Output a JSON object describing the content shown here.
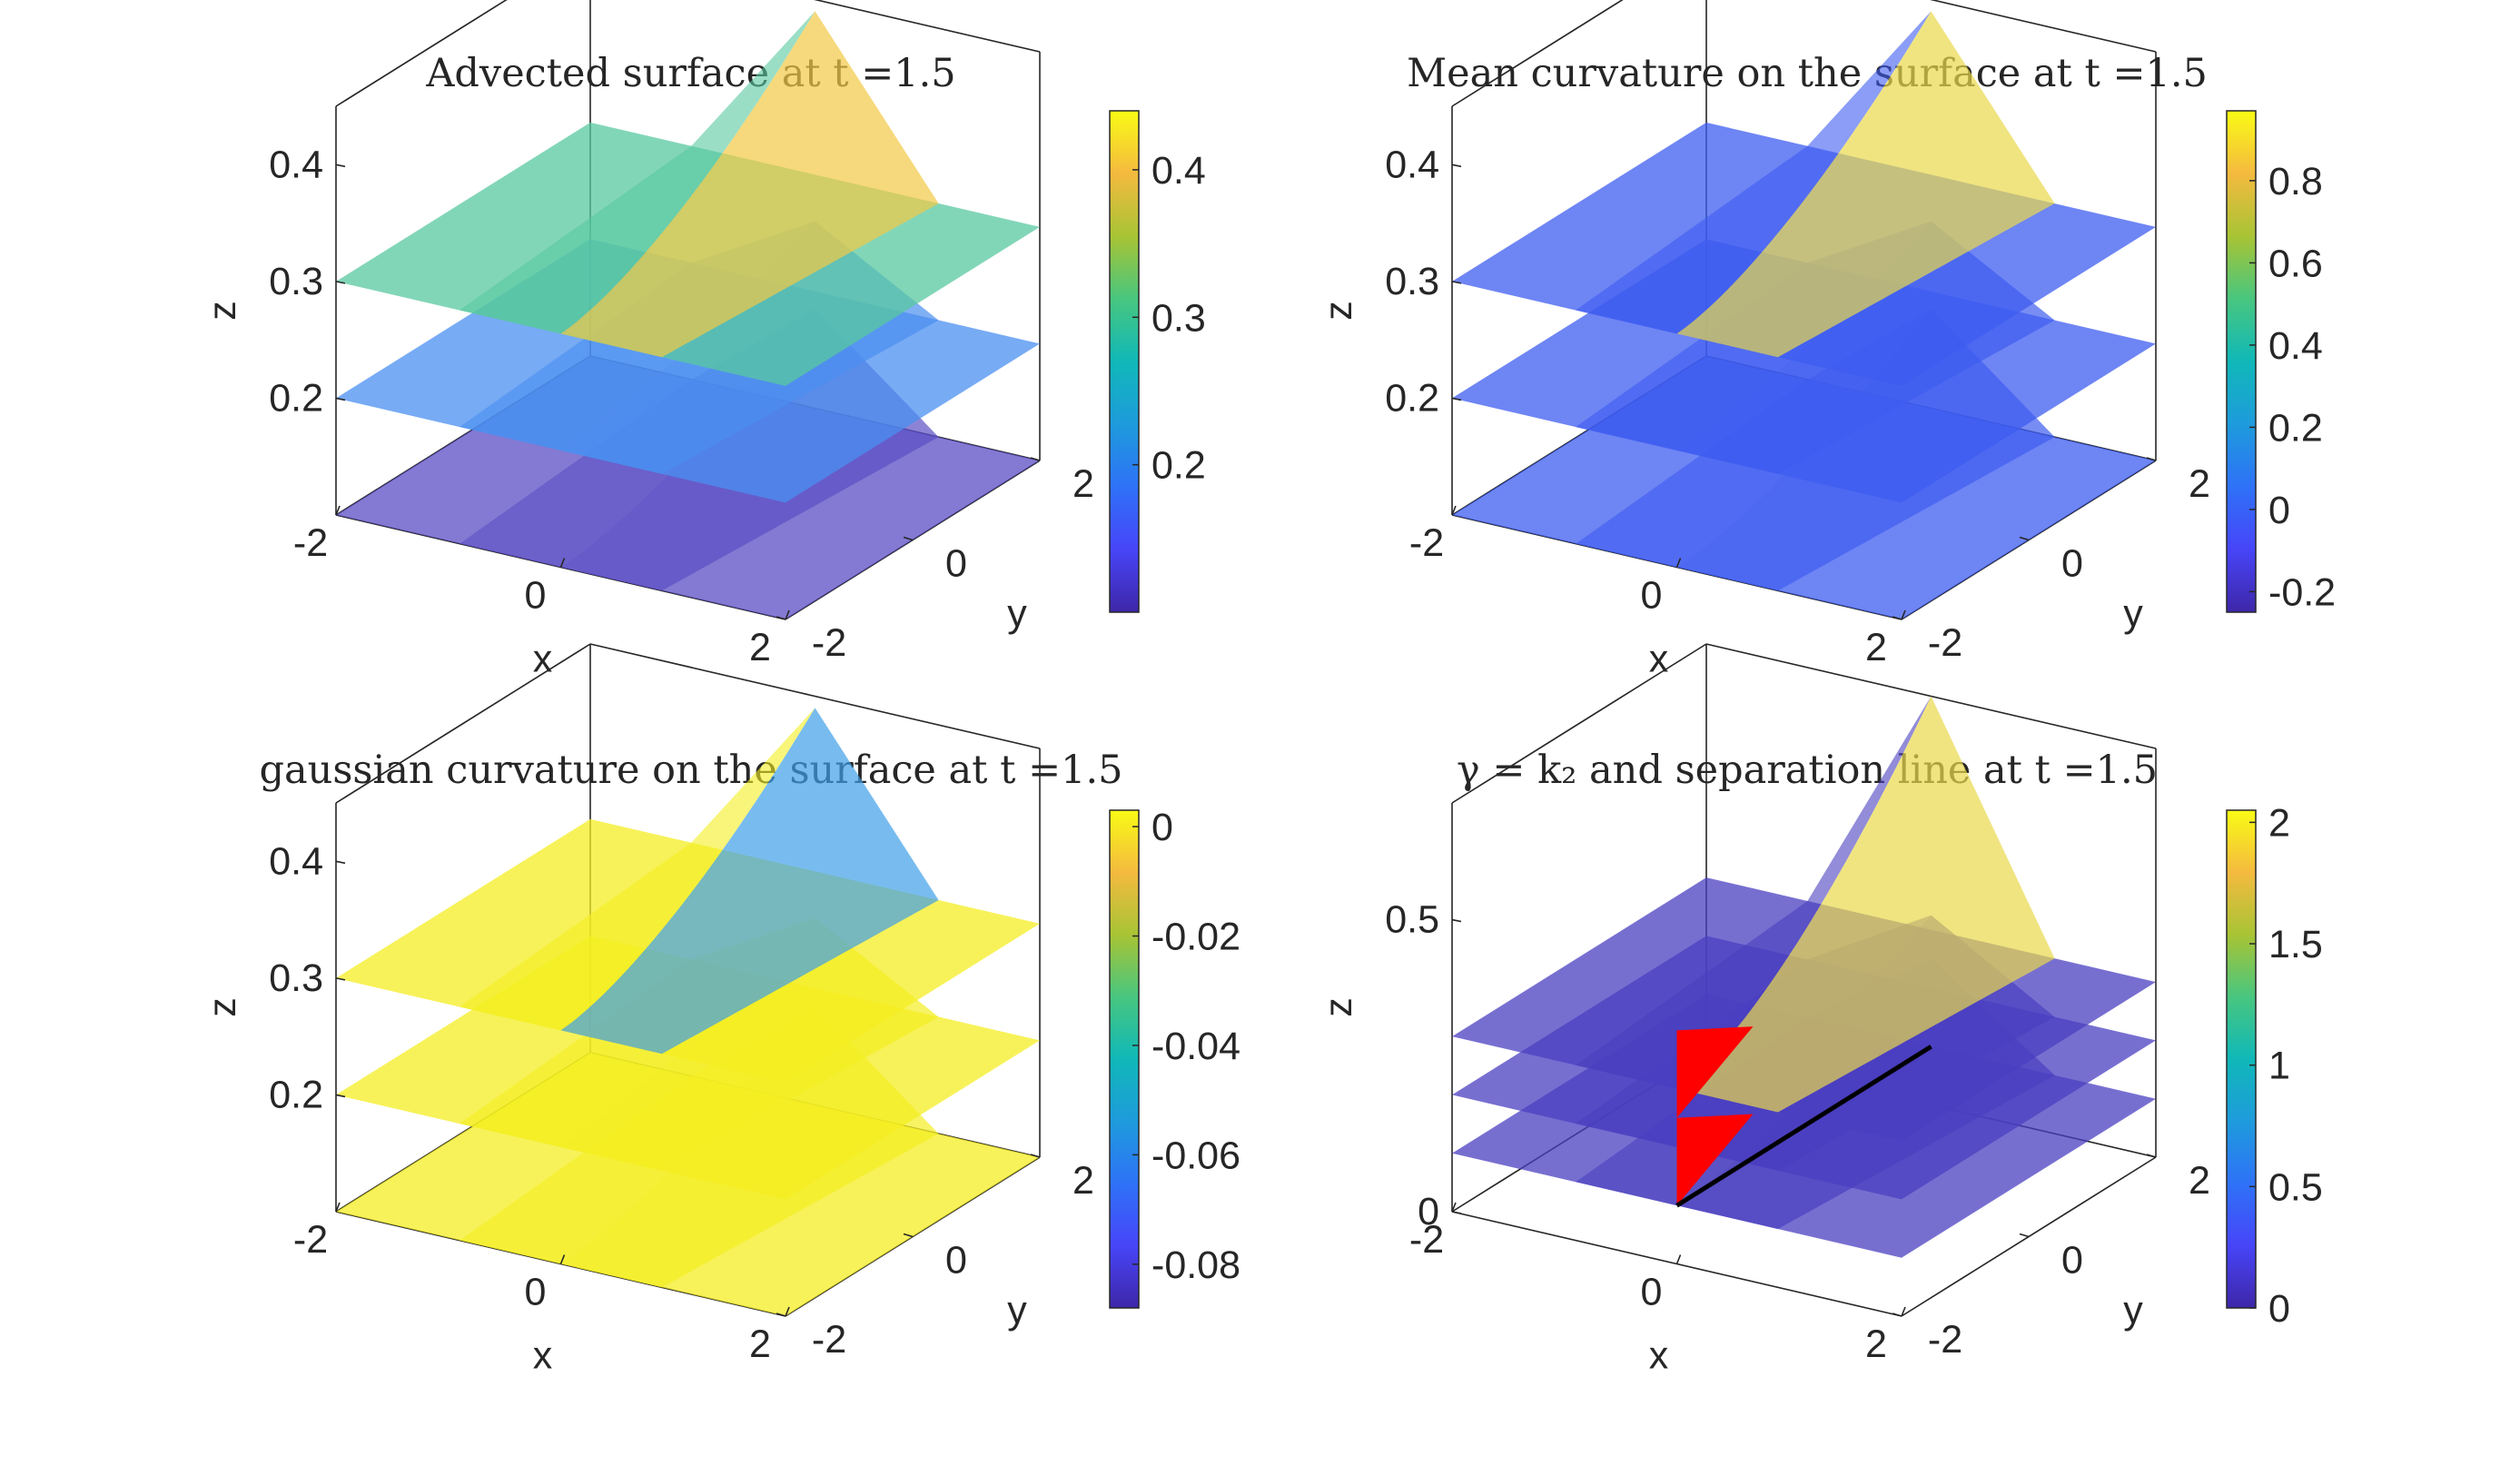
{
  "figure": {
    "layout": "2x2 subplots"
  },
  "chart_data": [
    {
      "type": "surface",
      "title": "Advected surface at t =1.5",
      "xlabel": "x",
      "ylabel": "y",
      "zlabel": "z",
      "xticks": [
        "-2",
        "0",
        "2"
      ],
      "yticks": [
        "-2",
        "0",
        "2"
      ],
      "zticks": [
        "0.2",
        "0.3",
        "0.4"
      ],
      "xlim": [
        -2,
        2
      ],
      "ylim": [
        -2,
        2
      ],
      "zlim": [
        0.1,
        0.45
      ],
      "layers": [
        0.1,
        0.2,
        0.3
      ],
      "ridge_peak_z": 0.44,
      "colormap": "parula",
      "colorbar": {
        "ticks": [
          "0.2",
          "0.3",
          "0.4"
        ],
        "tick_values": [
          0.2,
          0.3,
          0.4
        ],
        "range": [
          0.1,
          0.44
        ]
      },
      "surface_colors": [
        "#5b4ec4",
        "#4a8ff0",
        "#58c8a0"
      ],
      "ridge_color": "#f2c945"
    },
    {
      "type": "surface",
      "title": "Mean curvature on the surface at t =1.5",
      "xlabel": "x",
      "ylabel": "y",
      "zlabel": "z",
      "xticks": [
        "-2",
        "0",
        "2"
      ],
      "yticks": [
        "-2",
        "0",
        "2"
      ],
      "zticks": [
        "0.2",
        "0.3",
        "0.4"
      ],
      "xlim": [
        -2,
        2
      ],
      "ylim": [
        -2,
        2
      ],
      "zlim": [
        0.1,
        0.45
      ],
      "layers": [
        0.1,
        0.2,
        0.3
      ],
      "ridge_peak_z": 0.44,
      "colormap": "parula",
      "colorbar": {
        "ticks": [
          "-0.2",
          "0",
          "0.2",
          "0.4",
          "0.6",
          "0.8"
        ],
        "tick_values": [
          -0.2,
          0,
          0.2,
          0.4,
          0.6,
          0.8
        ],
        "range": [
          -0.25,
          0.97
        ]
      },
      "surface_colors": [
        "#3e5cf0",
        "#3e5cf0",
        "#3e5cf0"
      ],
      "ridge_color": "#e9d84c"
    },
    {
      "type": "surface",
      "title": "gaussian curvature on the surface at t =1.5",
      "xlabel": "x",
      "ylabel": "y",
      "zlabel": "z",
      "xticks": [
        "-2",
        "0",
        "2"
      ],
      "yticks": [
        "-2",
        "0",
        "2"
      ],
      "zticks": [
        "0.2",
        "0.3",
        "0.4"
      ],
      "xlim": [
        -2,
        2
      ],
      "ylim": [
        -2,
        2
      ],
      "zlim": [
        0.1,
        0.45
      ],
      "layers": [
        0.1,
        0.2,
        0.3
      ],
      "ridge_peak_z": 0.44,
      "colormap": "parula",
      "colorbar": {
        "ticks": [
          "-0.08",
          "-0.06",
          "-0.04",
          "-0.02",
          "0"
        ],
        "tick_values": [
          -0.08,
          -0.06,
          -0.04,
          -0.02,
          0
        ],
        "range": [
          -0.088,
          0.003
        ]
      },
      "surface_colors": [
        "#f4ee22",
        "#f4ee22",
        "#f4ee22"
      ],
      "ridge_color": "#3fa0e8"
    },
    {
      "type": "surface",
      "title": "γ = k₂ and separation line at t =1.5",
      "xlabel": "x",
      "ylabel": "y",
      "zlabel": "z",
      "xticks": [
        "-2",
        "0",
        "2"
      ],
      "yticks": [
        "-2",
        "0",
        "2"
      ],
      "zticks": [
        "0",
        "0.5"
      ],
      "xlim": [
        -2,
        2
      ],
      "ylim": [
        -2,
        2
      ],
      "zlim": [
        0,
        0.7
      ],
      "layers": [
        0.1,
        0.2,
        0.3
      ],
      "ridge_peak_z": 0.7,
      "colormap": "parula",
      "colorbar": {
        "ticks": [
          "0",
          "0.5",
          "1",
          "1.5",
          "2"
        ],
        "tick_values": [
          0,
          0.5,
          1,
          1.5,
          2
        ],
        "range": [
          0,
          2.05
        ]
      },
      "surface_colors": [
        "#4a3fc0",
        "#4a3fc0",
        "#4a3fc0"
      ],
      "ridge_color": "#e9d84c",
      "separation_line": {
        "color": "#ff0000",
        "line_color": "#000000"
      }
    }
  ]
}
